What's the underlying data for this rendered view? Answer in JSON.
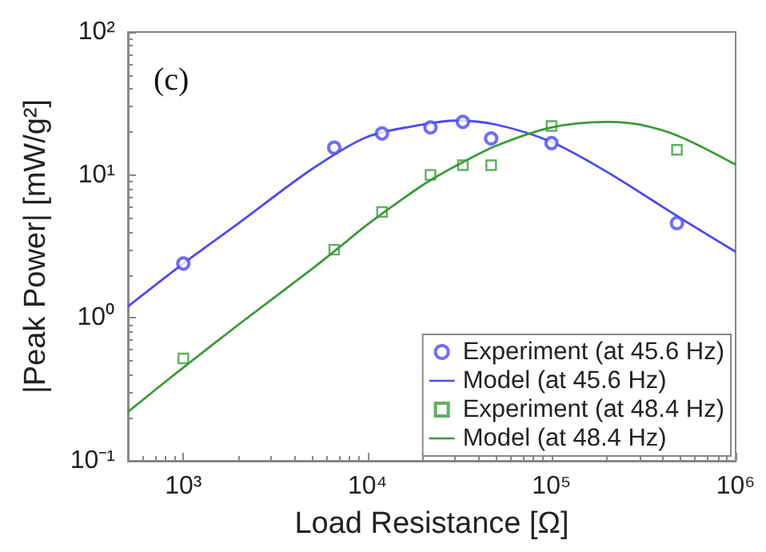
{
  "chart_data": {
    "type": "line",
    "xlabel": "Load Resistance [Ω]",
    "ylabel": "|Peak Power| [mW/g²]",
    "annotations": [
      "(c)"
    ],
    "log": "xy",
    "xlim": [
      500,
      1000000
    ],
    "ylim": [
      0.1,
      100
    ],
    "xticks": [
      {
        "value": 1000,
        "label": "10³"
      },
      {
        "value": 10000,
        "label": "10⁴"
      },
      {
        "value": 100000,
        "label": "10⁵"
      },
      {
        "value": 1000000,
        "label": "10⁶"
      }
    ],
    "yticks": [
      {
        "value": 0.1,
        "label": "10⁻¹"
      },
      {
        "value": 1,
        "label": "10⁰"
      },
      {
        "value": 10,
        "label": "10¹"
      },
      {
        "value": 100,
        "label": "10²"
      }
    ],
    "grid": false,
    "legend": "bottom right",
    "series": [
      {
        "name": "Experiment (at 45.6 Hz)",
        "type": "scatter",
        "marker": "circle",
        "color": "#4b4bf0",
        "x": [
          1000,
          6600,
          12000,
          22000,
          33000,
          47000,
          100000,
          480000
        ],
        "values": [
          2.4,
          15.5,
          19.5,
          21.5,
          23.5,
          18,
          16.7,
          4.6
        ]
      },
      {
        "name": "Model (at 45.6 Hz)",
        "marker": "none",
        "line_style": "solid",
        "color": "#4b4bf0",
        "x": [
          500,
          1000,
          2000,
          5000,
          10000,
          20000,
          30000,
          50000,
          100000,
          200000,
          500000,
          1000000
        ],
        "values": [
          1.2,
          2.4,
          4.6,
          11,
          18.5,
          22.5,
          24,
          22.5,
          17,
          10.5,
          5,
          2.9
        ]
      },
      {
        "name": "Experiment (at 48.4 Hz)",
        "type": "scatter",
        "marker": "square",
        "color": "#3a9a3a",
        "x": [
          1000,
          6600,
          12000,
          22000,
          33000,
          47000,
          100000,
          480000
        ],
        "values": [
          0.52,
          3.0,
          5.5,
          10,
          11.7,
          11.7,
          22,
          15
        ]
      },
      {
        "name": "Model (at 48.4 Hz)",
        "marker": "none",
        "line_style": "solid",
        "color": "#3a9a3a",
        "x": [
          500,
          1000,
          2000,
          5000,
          7000,
          10000,
          20000,
          30000,
          50000,
          100000,
          200000,
          300000,
          500000,
          1000000
        ],
        "values": [
          0.22,
          0.45,
          0.9,
          2.2,
          3.1,
          4.5,
          8.5,
          11.5,
          16,
          21.5,
          23.5,
          22.5,
          18.5,
          11.8
        ]
      }
    ]
  }
}
